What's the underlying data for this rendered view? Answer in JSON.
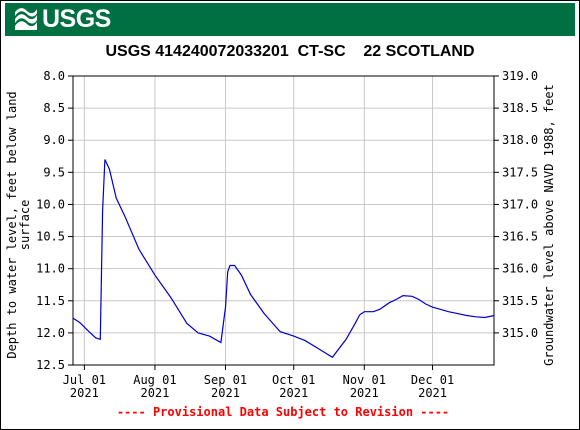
{
  "banner": {
    "logo_text": "USGS",
    "color": "#006f41"
  },
  "chart_data": {
    "type": "line",
    "title": "USGS 414240072033201  CT-SC    22 SCOTLAND",
    "ylabel": "Depth to water level, feet below land surface",
    "ylabel_lines": [
      "Depth to water level, feet below land",
      "surface"
    ],
    "ylabel_right": "Groundwater level above NAVD 1988, feet",
    "footer": "---- Provisional Data Subject to Revision ----",
    "footer_color": "#ff0000",
    "line_color": "#0000cc",
    "grid": true,
    "ylim": [
      8.0,
      12.5
    ],
    "y_inverted": true,
    "y_ticks": [
      "8.0",
      "8.5",
      "9.0",
      "9.5",
      "10.0",
      "10.5",
      "11.0",
      "11.5",
      "12.0",
      "12.5"
    ],
    "y_right_ticks": [
      "319.0",
      "318.5",
      "318.0",
      "317.5",
      "317.0",
      "316.5",
      "316.0",
      "315.5",
      "315.0"
    ],
    "y_right_values": [
      319.0,
      318.5,
      318.0,
      317.5,
      317.0,
      316.5,
      316.0,
      315.5,
      315.0
    ],
    "x_range": [
      "2021-06-26",
      "2021-12-28"
    ],
    "x_ticks": [
      {
        "date": "2021-07-01",
        "label": "Jul 01",
        "year": "2021"
      },
      {
        "date": "2021-08-01",
        "label": "Aug 01",
        "year": "2021"
      },
      {
        "date": "2021-09-01",
        "label": "Sep 01",
        "year": "2021"
      },
      {
        "date": "2021-10-01",
        "label": "Oct 01",
        "year": "2021"
      },
      {
        "date": "2021-11-01",
        "label": "Nov 01",
        "year": "2021"
      },
      {
        "date": "2021-12-01",
        "label": "Dec 01",
        "year": "2021"
      }
    ],
    "series": [
      {
        "x": [
          "2021-06-26",
          "2021-06-29",
          "2021-07-03",
          "2021-07-06",
          "2021-07-08",
          "2021-07-09",
          "2021-07-10",
          "2021-07-12",
          "2021-07-15",
          "2021-07-19",
          "2021-07-25",
          "2021-08-01",
          "2021-08-08",
          "2021-08-15",
          "2021-08-20",
          "2021-08-25",
          "2021-08-30",
          "2021-09-01",
          "2021-09-02",
          "2021-09-03",
          "2021-09-05",
          "2021-09-08",
          "2021-09-12",
          "2021-09-18",
          "2021-09-25",
          "2021-10-01",
          "2021-10-06",
          "2021-10-12",
          "2021-10-18",
          "2021-10-24",
          "2021-10-28",
          "2021-10-30",
          "2021-11-01",
          "2021-11-05",
          "2021-11-08",
          "2021-11-12",
          "2021-11-15",
          "2021-11-18",
          "2021-11-22",
          "2021-11-25",
          "2021-11-28",
          "2021-12-01",
          "2021-12-04",
          "2021-12-08",
          "2021-12-12",
          "2021-12-16",
          "2021-12-20",
          "2021-12-24",
          "2021-12-28"
        ],
        "values": [
          11.77,
          11.84,
          11.98,
          12.08,
          12.1,
          10.1,
          9.3,
          9.45,
          9.9,
          10.2,
          10.7,
          11.1,
          11.45,
          11.85,
          12.0,
          12.05,
          12.15,
          11.6,
          11.05,
          10.95,
          10.95,
          11.1,
          11.4,
          11.7,
          11.98,
          12.05,
          12.12,
          12.25,
          12.38,
          12.1,
          11.85,
          11.72,
          11.67,
          11.67,
          11.63,
          11.53,
          11.48,
          11.42,
          11.43,
          11.48,
          11.55,
          11.6,
          11.63,
          11.67,
          11.7,
          11.73,
          11.75,
          11.76,
          11.73
        ]
      }
    ]
  }
}
